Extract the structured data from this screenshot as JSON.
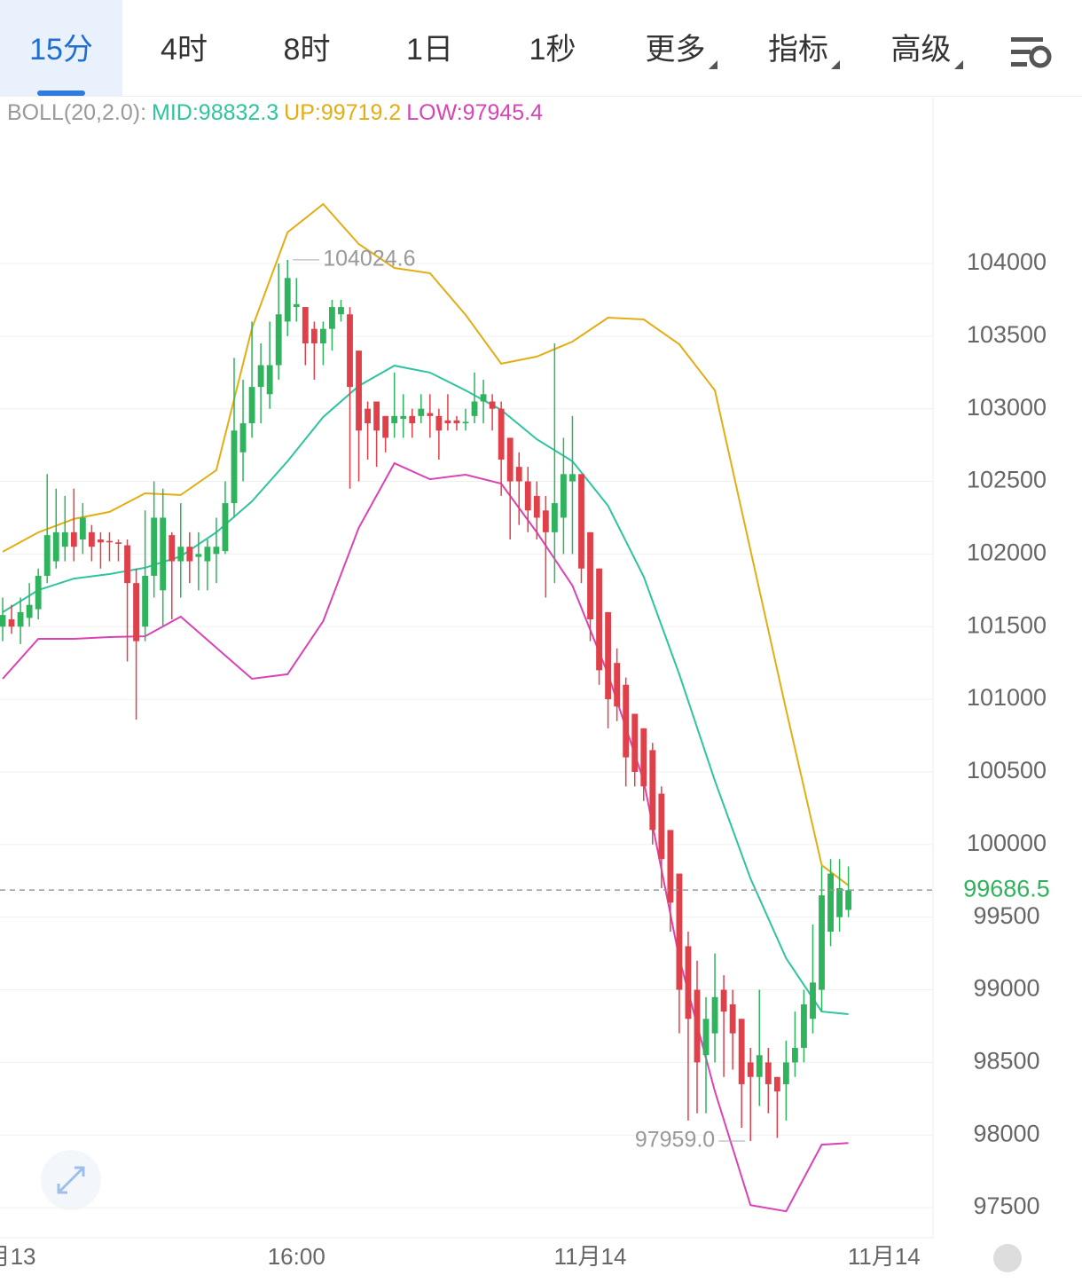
{
  "tabs": [
    "15分",
    "4时",
    "8时",
    "1日",
    "1秒",
    "更多",
    "指标",
    "高级"
  ],
  "chart_data": {
    "type": "candlestick",
    "indicator": "BOLL(20,2.0):",
    "up_color": "#2fb35c",
    "down_color": "#e0404a",
    "open": [
      101500,
      101550,
      101500,
      101560,
      101620,
      101850,
      101950,
      102050,
      102150,
      102100,
      102150,
      102100,
      102090,
      102080,
      102060,
      101800,
      101500,
      101850,
      101750,
      102130,
      101950,
      102050,
      101980,
      101950,
      102000,
      102020,
      102350,
      102700,
      102900,
      103150,
      103100,
      103300,
      103600,
      103700,
      103700,
      103550,
      103450,
      103550,
      103650,
      103650,
      103400,
      103000,
      103050,
      102950,
      102900,
      102930,
      102950,
      102950,
      102970,
      102950,
      102920,
      102920,
      102900,
      102950,
      103050,
      103050,
      103000,
      102800,
      102600,
      102500,
      102400,
      102300,
      102150,
      102250,
      102500,
      102550,
      102150,
      101900,
      101600,
      101250,
      101100,
      100900,
      100800,
      100650,
      100350,
      100100,
      99800,
      99300,
      99000,
      98550,
      98700,
      99000,
      98900,
      98800,
      98500,
      98400,
      98500,
      98400,
      98350,
      98500,
      98600,
      98800,
      99000,
      99400,
      99500,
      99550
    ],
    "high": [
      101700,
      101650,
      101700,
      101800,
      101900,
      102550,
      102450,
      102400,
      102450,
      102350,
      102200,
      102150,
      102150,
      102100,
      102100,
      101900,
      102300,
      102500,
      102450,
      102150,
      102350,
      102150,
      102150,
      102100,
      102250,
      102500,
      103350,
      103200,
      103600,
      103450,
      103600,
      104000,
      104024.6,
      103900,
      103700,
      103600,
      103600,
      103750,
      103750,
      103700,
      103400,
      103050,
      103050,
      102950,
      103250,
      103100,
      103000,
      103100,
      103100,
      103000,
      103100,
      102950,
      103000,
      103250,
      103200,
      103100,
      103050,
      102800,
      102700,
      102600,
      102500,
      102400,
      103450,
      102800,
      102950,
      102550,
      102150,
      101900,
      101600,
      101350,
      101150,
      100900,
      100800,
      100700,
      100400,
      100100,
      99800,
      99400,
      99200,
      98950,
      99250,
      99100,
      99000,
      98800,
      98600,
      99000,
      98600,
      98400,
      98650,
      98850,
      99000,
      99450,
      99850,
      99900,
      99900,
      99850
    ],
    "low": [
      101400,
      101450,
      101380,
      101500,
      101550,
      101800,
      101900,
      101950,
      101950,
      102000,
      101950,
      101900,
      101950,
      101950,
      101260,
      100860,
      101400,
      101700,
      101500,
      101550,
      101700,
      101800,
      101750,
      101750,
      101800,
      102000,
      102250,
      102500,
      102800,
      102900,
      103000,
      103200,
      103500,
      103600,
      103300,
      103200,
      103300,
      103400,
      103600,
      102450,
      102500,
      102650,
      102600,
      102700,
      102800,
      102800,
      102800,
      102900,
      102800,
      102650,
      102850,
      102850,
      102850,
      102900,
      102900,
      102850,
      102400,
      102100,
      102200,
      102150,
      102100,
      101700,
      101800,
      102000,
      102000,
      101800,
      101400,
      101100,
      100800,
      100850,
      100400,
      100400,
      100300,
      100000,
      99700,
      99400,
      98700,
      98100,
      98150,
      98150,
      98500,
      98400,
      98450,
      98050,
      97959.0,
      98200,
      98150,
      97980,
      98100,
      98400,
      98500,
      98700,
      98850,
      99300,
      99400,
      99500
    ],
    "close": [
      101580,
      101500,
      101600,
      101650,
      101850,
      102130,
      102150,
      102150,
      102050,
      102250,
      102050,
      102080,
      102080,
      102070,
      101800,
      101400,
      101850,
      102250,
      102250,
      101950,
      102050,
      101950,
      102000,
      102050,
      102050,
      102350,
      102850,
      102900,
      103150,
      103300,
      103300,
      103650,
      103900,
      103720,
      103450,
      103450,
      103550,
      103700,
      103700,
      103150,
      102850,
      102900,
      102850,
      102800,
      102950,
      102950,
      102900,
      103000,
      102950,
      102850,
      102900,
      102900,
      102910,
      103050,
      103100,
      103000,
      102650,
      102500,
      102500,
      102300,
      102250,
      102150,
      102350,
      102550,
      102550,
      101900,
      101550,
      101200,
      101000,
      100950,
      100600,
      100500,
      100400,
      100100,
      99900,
      99600,
      99000,
      98800,
      98500,
      98800,
      98950,
      98850,
      98700,
      98350,
      98400,
      98550,
      98350,
      98300,
      98500,
      98600,
      98900,
      99050,
      99650,
      99800,
      99700,
      99686.5
    ],
    "high_label": "104024.6",
    "low_label": "97959.0",
    "last_label": "99686.5",
    "series": [
      {
        "name": "MID:98832.3",
        "color": "#2ec4a0",
        "x": [
          0,
          4,
          8,
          12,
          16,
          20,
          24,
          28,
          32,
          36,
          40,
          44,
          48,
          52,
          56,
          60,
          64,
          68,
          72,
          76,
          80,
          84,
          88,
          92,
          95
        ],
        "values": [
          101599,
          101752,
          101831,
          101862,
          101905,
          101984,
          102149,
          102363,
          102638,
          102943,
          103157,
          103297,
          103249,
          103126,
          102992,
          102790,
          102638,
          102332,
          101844,
          101172,
          100438,
          99766,
          99217,
          98850,
          98832.3
        ]
      },
      {
        "name": "UP:99719.2",
        "color": "#e3ad14",
        "x": [
          0,
          4,
          8,
          12,
          16,
          20,
          24,
          28,
          32,
          36,
          40,
          44,
          48,
          52,
          56,
          60,
          64,
          68,
          72,
          76,
          80,
          84,
          88,
          92,
          95
        ],
        "values": [
          102015,
          102149,
          102241,
          102290,
          102418,
          102406,
          102577,
          103554,
          104214,
          104409,
          104134,
          103969,
          103933,
          103646,
          103310,
          103359,
          103462,
          103627,
          103615,
          103444,
          103126,
          102027,
          100927,
          99858,
          99719.2
        ]
      },
      {
        "name": "LOW:97945.4",
        "color": "#d943b5",
        "x": [
          0,
          4,
          8,
          12,
          16,
          20,
          24,
          28,
          32,
          36,
          40,
          44,
          48,
          52,
          56,
          60,
          64,
          68,
          72,
          76,
          80,
          84,
          88,
          92,
          95
        ],
        "values": [
          101141,
          101416,
          101416,
          101428,
          101434,
          101569,
          101355,
          101141,
          101172,
          101538,
          102180,
          102625,
          102515,
          102546,
          102485,
          102149,
          101782,
          101172,
          100438,
          99217,
          98300,
          97518,
          97475,
          97934,
          97945.4
        ]
      }
    ],
    "ylim": [
      97293,
      105142
    ],
    "yticks": [
      97500,
      98000,
      98500,
      99000,
      99500,
      100000,
      100500,
      101000,
      101500,
      102000,
      102500,
      103000,
      103500,
      104000
    ],
    "xlim": [
      -0.3,
      104.5
    ],
    "xticks": [
      {
        "value": 1,
        "label": "月13"
      },
      {
        "value": 33,
        "label": "16:00"
      },
      {
        "value": 66,
        "label": "11月14"
      },
      {
        "value": 99,
        "label": "11月14"
      }
    ],
    "grid": true
  }
}
